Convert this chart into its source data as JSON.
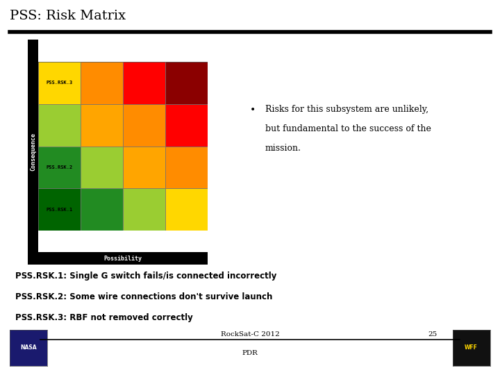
{
  "title": "PSS: Risk Matrix",
  "background_color": "#ffffff",
  "title_color": "#000000",
  "title_fontsize": 14,
  "header_line_color": "#000000",
  "matrix_colors": [
    [
      "#006400",
      "#228B22",
      "#9ACD32",
      "#FFD700"
    ],
    [
      "#228B22",
      "#9ACD32",
      "#FFA500",
      "#FF8C00"
    ],
    [
      "#9ACD32",
      "#FFA500",
      "#FF8C00",
      "#FF0000"
    ],
    [
      "#FFD700",
      "#FF8C00",
      "#FF0000",
      "#8B0000"
    ]
  ],
  "risk_positions": {
    "PSS.RSK.1": [
      0,
      0
    ],
    "PSS.RSK.2": [
      1,
      0
    ],
    "PSS.RSK.3": [
      3,
      0
    ]
  },
  "ylabel_text": "Consequence",
  "xlabel_text": "Possibility",
  "bullet_lines": [
    "Risks for this subsystem are unlikely,",
    "but fundamental to the success of the",
    "mission."
  ],
  "description_lines": [
    "PSS.RSK.1: Single G switch fails/is connected incorrectly",
    "PSS.RSK.2: Some wire connections don't survive launch",
    "PSS.RSK.3: RBF not removed correctly"
  ],
  "footer_center_text": "RockSat-C 2012",
  "footer_right_text": "25",
  "footer_bottom_text": "PDR",
  "matrix_bg": "#000000"
}
